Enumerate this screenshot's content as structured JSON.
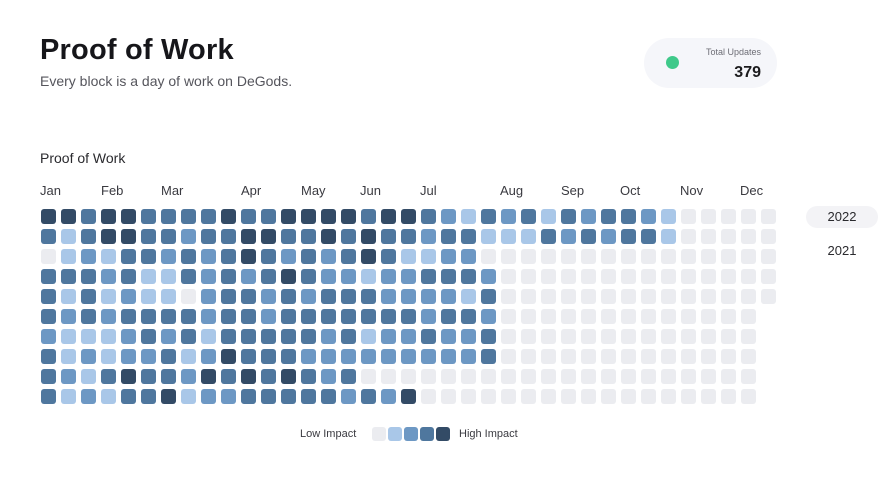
{
  "header": {
    "title": "Proof of Work",
    "subtitle": "Every block is a day of work on DeGods."
  },
  "stat": {
    "label": "Total Updates",
    "value": "379",
    "dot_color": "#3fc98a"
  },
  "heatmap": {
    "section_title": "Proof of Work",
    "months": [
      "Jan",
      "Feb",
      "Mar",
      "Apr",
      "May",
      "Jun",
      "Jul",
      "Aug",
      "Sep",
      "Oct",
      "Nov",
      "Dec"
    ],
    "levels": [
      "44344333343344443443213231323321000000000000000000000000000000",
      "31344332334433434332331113232331000000000000000000000000000000",
      "01213323234323234311220000000000000000000000000000000000000000",
      "33323113232343221223332000000000000000000000000000000000000000",
      "31312110233232333222213000000000000000000000000000000000000000",
      "32323333233233333332332000000000000000000000000000000000000000",
      "21112323133333231223223000000000000000000000000000000000000000",
      "31212231243332222222223000000000000000000000000000000000000000",
      "32134332434343230000000000000000000000000000000000000000000000",
      "31213341223333323240000000000000000000000000000000000000000000"
    ],
    "colors": [
      "#ebecf0",
      "#a9c7e8",
      "#6d98c4",
      "#4f779e",
      "#334b66"
    ],
    "legend": {
      "low_label": "Low Impact",
      "high_label": "High Impact"
    }
  },
  "years": [
    {
      "label": "2022",
      "active": true
    },
    {
      "label": "2021",
      "active": false
    }
  ]
}
